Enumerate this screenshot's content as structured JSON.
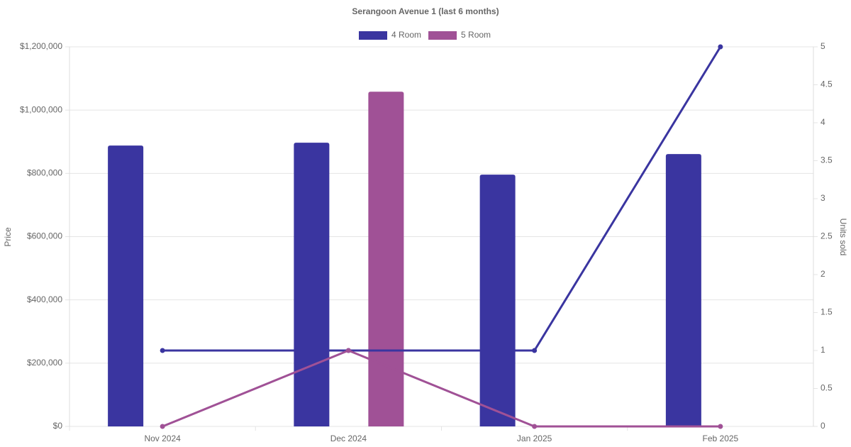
{
  "chart_data": {
    "type": "combo",
    "title": "Serangoon Avenue 1 (last 6 months)",
    "y_label": "Price",
    "y2_label": "Units sold",
    "categories": [
      "Nov 2024",
      "Dec 2024",
      "Jan 2025",
      "Feb 2025"
    ],
    "series": [
      {
        "name": "4 Room",
        "color": "#3a35a0",
        "values": [
          888000,
          897000,
          796000,
          861000
        ],
        "units_sold": [
          1,
          1,
          1,
          5
        ]
      },
      {
        "name": "5 Room",
        "color": "#a05196",
        "values": [
          null,
          1058000,
          null,
          null
        ],
        "units_sold": [
          0,
          1,
          0,
          0
        ]
      }
    ],
    "ylim": [
      0,
      1200000
    ],
    "yticks": [
      {
        "value": 0,
        "label": "$0"
      },
      {
        "value": 200000,
        "label": "$200,000"
      },
      {
        "value": 400000,
        "label": "$400,000"
      },
      {
        "value": 600000,
        "label": "$600,000"
      },
      {
        "value": 800000,
        "label": "$800,000"
      },
      {
        "value": 1000000,
        "label": "$1,000,000"
      },
      {
        "value": 1200000,
        "label": "$1,200,000"
      }
    ],
    "y2lim": [
      0,
      5
    ],
    "y2ticks": [
      0,
      0.5,
      1,
      1.5,
      2,
      2.5,
      3,
      3.5,
      4,
      4.5,
      5
    ],
    "grid": true,
    "legend": "top"
  }
}
